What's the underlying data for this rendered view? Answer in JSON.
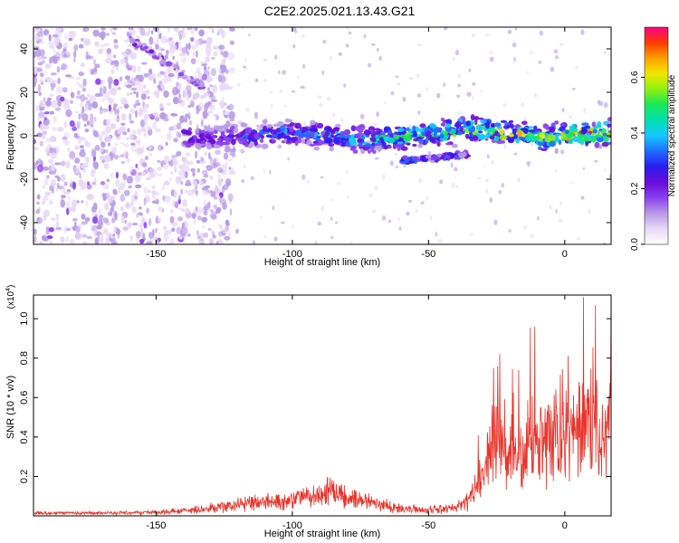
{
  "title": "C2E2.2025.021.13.43.G21",
  "colors": {
    "snr_line": "#e8332a",
    "colormap": [
      "#ffffff",
      "#e8d8f6",
      "#b99be8",
      "#8a3ff0",
      "#6a0cd8",
      "#2a1cf0",
      "#1f6cff",
      "#14c8ff",
      "#00e0b0",
      "#19e85a",
      "#8ff010",
      "#f0e800",
      "#ffa000",
      "#ff3a00",
      "#ff0088"
    ]
  },
  "chart_data": [
    {
      "type": "heatmap",
      "xlabel": "Height of straight line (km)",
      "ylabel": "Frequency (Hz)",
      "xlim": [
        -195,
        17
      ],
      "ylim": [
        -50,
        50
      ],
      "xticks": [
        -150,
        -100,
        -50,
        0
      ],
      "yticks": [
        -40,
        -20,
        0,
        20,
        40
      ],
      "colorbar": {
        "label": "Normalized spectral amplitude",
        "range": [
          0,
          0.78
        ],
        "ticks": [
          "0.0",
          "0.2",
          "0.4",
          "0.6"
        ],
        "tick_values": [
          0,
          0.2,
          0.4,
          0.6
        ]
      },
      "features": [
        {
          "description": "broad noise",
          "x_range": [
            -195,
            -130
          ],
          "y_range": [
            -50,
            50
          ],
          "amplitude": 0.08
        },
        {
          "description": "main band",
          "x_range": [
            -140,
            17
          ],
          "y_center": 0,
          "y_halfwidth": 5,
          "amplitude_start": 0.15,
          "amplitude_end": 0.6
        },
        {
          "description": "secondary band",
          "x_range": [
            -60,
            -35
          ],
          "y_center": -10,
          "amplitude": 0.25
        },
        {
          "description": "streak",
          "x_range": [
            -160,
            -130
          ],
          "y_range": [
            45,
            20
          ],
          "amplitude": 0.12
        }
      ]
    },
    {
      "type": "line",
      "xlabel": "Height of straight line (km)",
      "ylabel": "SNR (10 * v/v)",
      "y_multiplier": "(x10",
      "y_multiplier_exp": "4",
      "y_multiplier_close": ")",
      "xlim": [
        -195,
        17
      ],
      "ylim": [
        0,
        1.12
      ],
      "xticks": [
        -150,
        -100,
        -50,
        0
      ],
      "yticks": [
        0.2,
        0.4,
        0.6,
        0.8,
        1.0
      ],
      "ytick_labels": [
        "0.2",
        "0.4",
        "0.6",
        "0.8",
        "1.0"
      ],
      "series": [
        {
          "x": [
            -195,
            -170,
            -150,
            -130,
            -120,
            -110,
            -100,
            -90,
            -85,
            -80,
            -70,
            -60,
            -50,
            -40,
            -35,
            -30,
            -27,
            -25,
            -22,
            -20,
            -15,
            -10,
            -5,
            0,
            5,
            10,
            15,
            17
          ],
          "y": [
            0.02,
            0.02,
            0.025,
            0.05,
            0.07,
            0.09,
            0.1,
            0.14,
            0.17,
            0.12,
            0.08,
            0.05,
            0.04,
            0.05,
            0.1,
            0.25,
            0.45,
            0.6,
            0.35,
            0.45,
            0.4,
            0.55,
            0.45,
            0.5,
            0.55,
            0.6,
            0.45,
            0.7
          ]
        }
      ]
    }
  ]
}
